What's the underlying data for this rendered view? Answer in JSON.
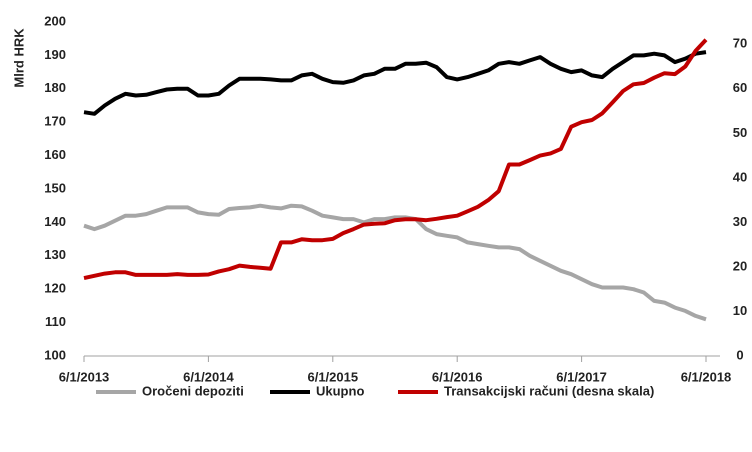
{
  "chart_data": {
    "type": "line",
    "y_label": "Mlrd HRK",
    "x": [
      "6/1/2013",
      "7/1/2013",
      "8/1/2013",
      "9/1/2013",
      "10/1/2013",
      "11/1/2013",
      "12/1/2013",
      "1/1/2014",
      "2/1/2014",
      "3/1/2014",
      "4/1/2014",
      "5/1/2014",
      "6/1/2014",
      "7/1/2014",
      "8/1/2014",
      "9/1/2014",
      "10/1/2014",
      "11/1/2014",
      "12/1/2014",
      "1/1/2015",
      "2/1/2015",
      "3/1/2015",
      "4/1/2015",
      "5/1/2015",
      "6/1/2015",
      "7/1/2015",
      "8/1/2015",
      "9/1/2015",
      "10/1/2015",
      "11/1/2015",
      "12/1/2015",
      "1/1/2016",
      "2/1/2016",
      "3/1/2016",
      "4/1/2016",
      "5/1/2016",
      "6/1/2016",
      "7/1/2016",
      "8/1/2016",
      "9/1/2016",
      "10/1/2016",
      "11/1/2016",
      "12/1/2016",
      "1/1/2017",
      "2/1/2017",
      "3/1/2017",
      "4/1/2017",
      "5/1/2017",
      "6/1/2017",
      "7/1/2017",
      "8/1/2017",
      "9/1/2017",
      "10/1/2017",
      "11/1/2017",
      "12/1/2017",
      "1/1/2018",
      "2/1/2018",
      "3/1/2018",
      "4/1/2018",
      "5/1/2018",
      "6/1/2018"
    ],
    "xticks": [
      "6/1/2013",
      "6/1/2014",
      "6/1/2015",
      "6/1/2016",
      "6/1/2017",
      "6/1/2018"
    ],
    "ylim": [
      100,
      200
    ],
    "yticks": [
      100,
      110,
      120,
      130,
      140,
      150,
      160,
      170,
      180,
      190,
      200
    ],
    "y2lim": [
      0,
      75
    ],
    "y2ticks": [
      0,
      10,
      20,
      30,
      40,
      50,
      60,
      70
    ],
    "series": [
      {
        "name": "Oročeni depoziti",
        "color": "#a6a6a6",
        "values": [
          139,
          138,
          139,
          140.5,
          142,
          142,
          142.5,
          143.5,
          144.5,
          144.5,
          144.5,
          143,
          142.5,
          142.3,
          144,
          144.3,
          144.5,
          145,
          144.5,
          144.2,
          145,
          144.8,
          143.5,
          142,
          141.5,
          141,
          141,
          140,
          141,
          141,
          141.5,
          141.5,
          141,
          138,
          136.5,
          136,
          135.5,
          134,
          133.5,
          133,
          132.5,
          132.5,
          132,
          130,
          128.5,
          127,
          125.5,
          124.5,
          123,
          121.5,
          120.5,
          120.5,
          120.5,
          120,
          119,
          116.5,
          116,
          114.5,
          113.5,
          112,
          111
        ]
      },
      {
        "name": "Ukupno",
        "color": "#000000",
        "values": [
          173,
          172.5,
          175,
          177,
          178.5,
          178,
          178.2,
          179,
          179.8,
          180,
          180,
          178,
          178,
          178.5,
          181,
          183,
          183,
          183,
          182.8,
          182.5,
          182.5,
          184,
          184.5,
          183,
          182,
          181.8,
          182.5,
          184,
          184.5,
          186,
          186,
          187.5,
          187.5,
          187.8,
          186.5,
          183.5,
          182.8,
          183.5,
          184.5,
          185.5,
          187.5,
          188,
          187.5,
          188.5,
          189.5,
          187.5,
          186,
          185,
          185.5,
          184,
          183.5,
          186,
          188,
          190,
          190,
          190.5,
          190,
          188,
          189,
          190.5,
          191
        ]
      },
      {
        "name": "Transakcijski računi (desna skala)",
        "color": "#c00000",
        "axis": "y2",
        "values": [
          17.5,
          18,
          18.5,
          18.8,
          18.8,
          18.2,
          18.2,
          18.2,
          18.2,
          18.4,
          18.2,
          18.2,
          18.3,
          19,
          19.5,
          20.3,
          20,
          19.8,
          19.6,
          25.5,
          25.5,
          26.2,
          26,
          26,
          26.3,
          27.6,
          28.5,
          29.5,
          29.7,
          29.8,
          30.5,
          30.7,
          30.7,
          30.5,
          30.8,
          31.2,
          31.5,
          32.5,
          33.5,
          35,
          37,
          43,
          43,
          44,
          45,
          45.5,
          46.5,
          51.5,
          52.5,
          53,
          54.5,
          57,
          59.5,
          61,
          61.3,
          62.5,
          63.5,
          63.3,
          65,
          68.5,
          71
        ]
      }
    ]
  }
}
